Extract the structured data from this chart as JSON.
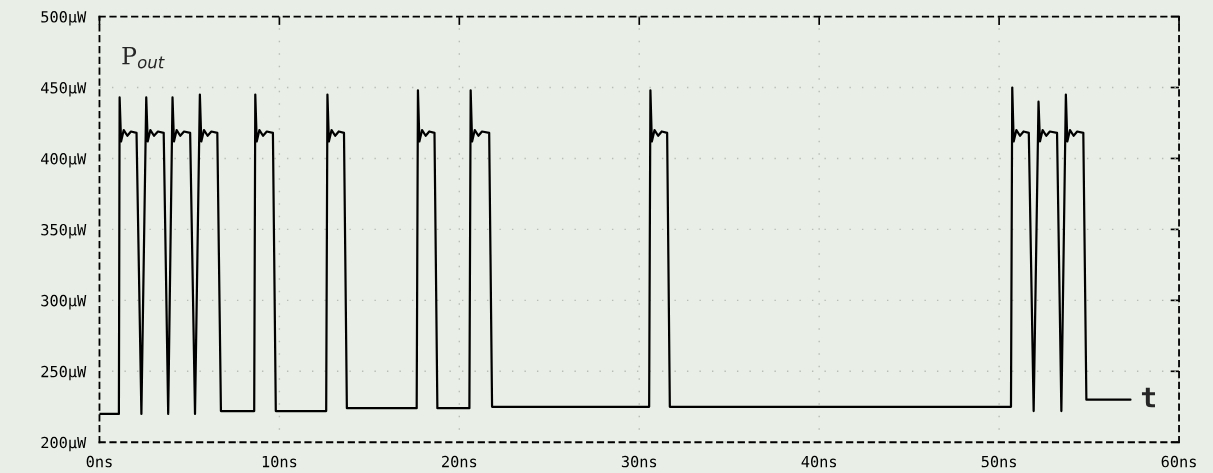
{
  "chart_data": {
    "type": "line",
    "ylabel": "P$_{out}$",
    "xlabel": "t",
    "x": [
      0,
      1.08,
      1.12,
      1.2,
      1.35,
      1.55,
      1.75,
      2.06,
      2.33,
      2.6,
      2.68,
      2.83,
      3.03,
      3.25,
      3.57,
      3.82,
      4.06,
      4.14,
      4.29,
      4.49,
      4.7,
      5.04,
      5.31,
      5.58,
      5.66,
      5.81,
      6.01,
      6.22,
      6.55,
      6.75,
      8.6,
      8.66,
      8.74,
      8.89,
      9.09,
      9.3,
      9.64,
      9.8,
      12.6,
      12.67,
      12.75,
      12.9,
      13.1,
      13.3,
      13.59,
      13.75,
      17.63,
      17.7,
      17.78,
      17.93,
      18.13,
      18.33,
      18.62,
      18.78,
      20.56,
      20.63,
      20.71,
      20.86,
      21.06,
      21.26,
      21.66,
      21.82,
      30.55,
      30.62,
      30.7,
      30.85,
      31.05,
      31.25,
      31.55,
      31.7,
      50.66,
      50.73,
      50.81,
      50.96,
      51.16,
      51.36,
      51.65,
      51.92,
      52.19,
      52.27,
      52.42,
      52.62,
      52.82,
      53.22,
      53.46,
      53.71,
      53.79,
      53.94,
      54.14,
      54.34,
      54.68,
      54.85,
      57.3
    ],
    "series": [
      {
        "color": "#000000",
        "values": [
          220,
          220,
          443,
          412,
          420,
          416,
          419,
          418,
          220,
          443,
          412,
          420,
          416,
          419,
          418,
          220,
          443,
          412,
          420,
          416,
          419,
          418,
          220,
          445,
          412,
          420,
          416,
          419,
          418,
          222,
          222,
          445,
          412,
          420,
          416,
          419,
          418,
          222,
          222,
          445,
          412,
          420,
          416,
          419,
          418,
          224,
          224,
          448,
          412,
          420,
          416,
          419,
          418,
          224,
          224,
          448,
          412,
          420,
          416,
          419,
          418,
          225,
          225,
          448,
          412,
          420,
          416,
          419,
          418,
          225,
          225,
          450,
          412,
          420,
          416,
          419,
          418,
          222,
          440,
          412,
          420,
          416,
          419,
          418,
          222,
          445,
          412,
          420,
          416,
          419,
          418,
          230,
          230
        ]
      }
    ],
    "xlim": [
      0,
      60
    ],
    "xticks": [
      {
        "value": 0,
        "label": "0ns"
      },
      {
        "value": 10,
        "label": "10ns"
      },
      {
        "value": 20,
        "label": "20ns"
      },
      {
        "value": 30,
        "label": "30ns"
      },
      {
        "value": 40,
        "label": "40ns"
      },
      {
        "value": 50,
        "label": "50ns"
      },
      {
        "value": 60,
        "label": "60ns"
      }
    ],
    "ylim": [
      200,
      500
    ],
    "yticks": [
      {
        "value": 200,
        "label": "200µW"
      },
      {
        "value": 250,
        "label": "250µW"
      },
      {
        "value": 300,
        "label": "300µW"
      },
      {
        "value": 350,
        "label": "350µW"
      },
      {
        "value": 400,
        "label": "400µW"
      },
      {
        "value": 450,
        "label": "450µW"
      },
      {
        "value": 500,
        "label": "500µW"
      }
    ],
    "grid": true,
    "line_style": "solid"
  }
}
